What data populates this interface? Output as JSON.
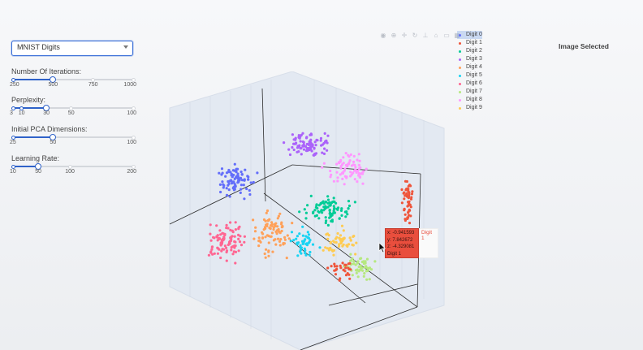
{
  "dataset_dropdown": {
    "selected": "MNIST Digits"
  },
  "sliders": [
    {
      "label": "Number Of Iterations:",
      "min": 250,
      "max": 1000,
      "value": 500,
      "marks": [
        {
          "v": 250,
          "t": "250"
        },
        {
          "v": 500,
          "t": "500"
        },
        {
          "v": 750,
          "t": "750"
        },
        {
          "v": 1000,
          "t": "1000"
        }
      ]
    },
    {
      "label": "Perplexity:",
      "min": 3,
      "max": 100,
      "value": 30,
      "marks": [
        {
          "v": 3,
          "t": "3"
        },
        {
          "v": 10,
          "t": "10"
        },
        {
          "v": 30,
          "t": "30"
        },
        {
          "v": 50,
          "t": "50"
        },
        {
          "v": 100,
          "t": "100"
        }
      ]
    },
    {
      "label": "Initial PCA Dimensions:",
      "min": 25,
      "max": 100,
      "value": 50,
      "marks": [
        {
          "v": 25,
          "t": "25"
        },
        {
          "v": 50,
          "t": "50"
        },
        {
          "v": 100,
          "t": "100"
        }
      ]
    },
    {
      "label": "Learning Rate:",
      "min": 10,
      "max": 200,
      "value": 50,
      "marks": [
        {
          "v": 10,
          "t": "10"
        },
        {
          "v": 50,
          "t": "50"
        },
        {
          "v": 100,
          "t": "100"
        },
        {
          "v": 200,
          "t": "200"
        }
      ]
    }
  ],
  "modebar_icons": [
    "camera-icon",
    "zoom-icon",
    "pan-icon",
    "orbit-icon",
    "turntable-icon",
    "reset-camera-icon",
    "hover-icon",
    "plotly-logo-icon"
  ],
  "legend": [
    {
      "name": "Digit 0",
      "color": "#636efa"
    },
    {
      "name": "Digit 1",
      "color": "#ef553b"
    },
    {
      "name": "Digit 2",
      "color": "#00cc96"
    },
    {
      "name": "Digit 3",
      "color": "#ab63fa"
    },
    {
      "name": "Digit 4",
      "color": "#ffa15a"
    },
    {
      "name": "Digit 5",
      "color": "#19d3f3"
    },
    {
      "name": "Digit 6",
      "color": "#ff6692"
    },
    {
      "name": "Digit 7",
      "color": "#b6e880"
    },
    {
      "name": "Digit 8",
      "color": "#ff97ff"
    },
    {
      "name": "Digit 9",
      "color": "#fecb52"
    }
  ],
  "image_panel": {
    "title": "Image Selected"
  },
  "hover_tooltip": {
    "x": "x: -0.941593",
    "y": "y: 7.842672",
    "z": "z: -4.329081",
    "label": "Digit 1",
    "trace": "Digit 1",
    "color": "#e94e3d"
  }
}
